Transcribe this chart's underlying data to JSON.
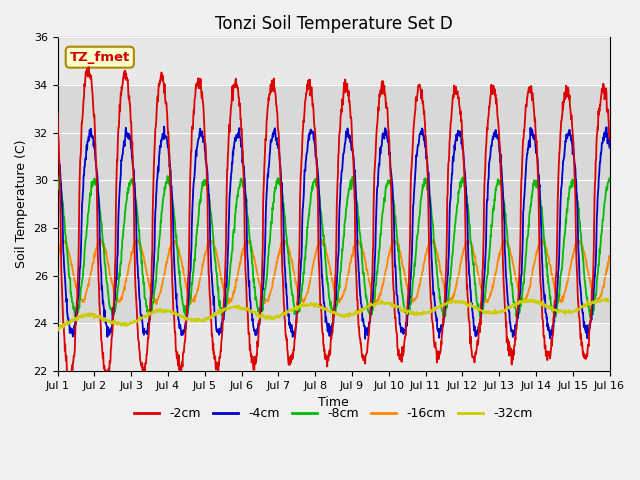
{
  "title": "Tonzi Soil Temperature Set D",
  "xlabel": "Time",
  "ylabel": "Soil Temperature (C)",
  "ylim": [
    22,
    36
  ],
  "xlim_start": 0,
  "xlim_end": 15,
  "xtick_positions": [
    0,
    1,
    2,
    3,
    4,
    5,
    6,
    7,
    8,
    9,
    10,
    11,
    12,
    13,
    14,
    15
  ],
  "xtick_labels": [
    "Jul 1",
    "Jul 2",
    "Jul 3",
    "Jul 4",
    "Jul 5",
    "Jul 6",
    "Jul 7",
    "Jul 8",
    "Jul 9",
    "Jul 10",
    "Jul 11",
    "Jul 12",
    "Jul 13",
    "Jul 14",
    "Jul 15",
    "Jul 16"
  ],
  "ytick_positions": [
    22,
    24,
    26,
    28,
    30,
    32,
    34,
    36
  ],
  "line_colors": [
    "#dd0000",
    "#0000cc",
    "#00bb00",
    "#ff8800",
    "#cccc00"
  ],
  "line_labels": [
    "-2cm",
    "-4cm",
    "-8cm",
    "-16cm",
    "-32cm"
  ],
  "fig_bg": "#f0f0f0",
  "plot_bg": "#e8e8e8",
  "band_lo": 24,
  "band_hi": 34,
  "band_color": "#d8d8d8",
  "annotation_text": "TZ_fmet",
  "ann_fc": "#ffffcc",
  "ann_ec": "#aa8800",
  "title_fs": 12,
  "axis_label_fs": 9,
  "legend_fs": 9,
  "tick_fs": 8,
  "linewidth": 1.3
}
